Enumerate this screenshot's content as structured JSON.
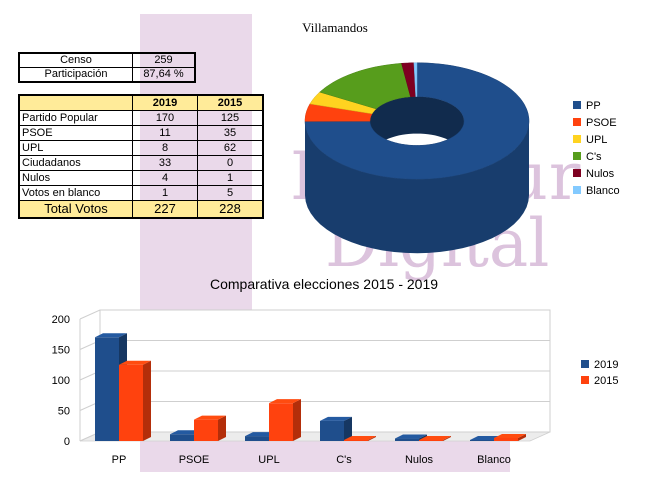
{
  "page_title": "Villamandos",
  "watermark": {
    "line1": "LeonSur",
    "line2": "Digital"
  },
  "summary": [
    {
      "label": "Censo",
      "value": "259"
    },
    {
      "label": "Participación",
      "value": "87,64 %"
    }
  ],
  "results_table": {
    "headers": [
      "",
      "2019",
      "2015"
    ],
    "rows": [
      [
        "Partido Popular",
        "170",
        "125"
      ],
      [
        "PSOE",
        "11",
        "35"
      ],
      [
        "UPL",
        "8",
        "62"
      ],
      [
        "Ciudadanos",
        "33",
        "0"
      ],
      [
        "Nulos",
        "4",
        "1"
      ],
      [
        "Votos en blanco",
        "1",
        "5"
      ]
    ],
    "total": [
      "Total Votos",
      "227",
      "228"
    ]
  },
  "chart_data": [
    {
      "type": "pie",
      "title": "",
      "categories": [
        "PP",
        "PSOE",
        "UPL",
        "C's",
        "Nulos",
        "Blanco"
      ],
      "values": [
        170,
        11,
        8,
        33,
        4,
        1
      ],
      "colors": [
        "#1f4e8c",
        "#ff420e",
        "#ffd320",
        "#579d1c",
        "#7e0021",
        "#83caff"
      ],
      "legend": "right"
    },
    {
      "type": "bar",
      "title": "Comparativa elecciones 2015 - 2019",
      "categories": [
        "PP",
        "PSOE",
        "UPL",
        "C's",
        "Nulos",
        "Blanco"
      ],
      "series": [
        {
          "name": "2019",
          "values": [
            170,
            11,
            8,
            33,
            4,
            1
          ],
          "color": "#1f4e8c"
        },
        {
          "name": "2015",
          "values": [
            125,
            35,
            62,
            0,
            1,
            5
          ],
          "color": "#ff420e"
        }
      ],
      "ylim": [
        0,
        200
      ],
      "yticks": [
        0,
        50,
        100,
        150,
        200
      ],
      "grid": true,
      "legend": "right"
    }
  ]
}
